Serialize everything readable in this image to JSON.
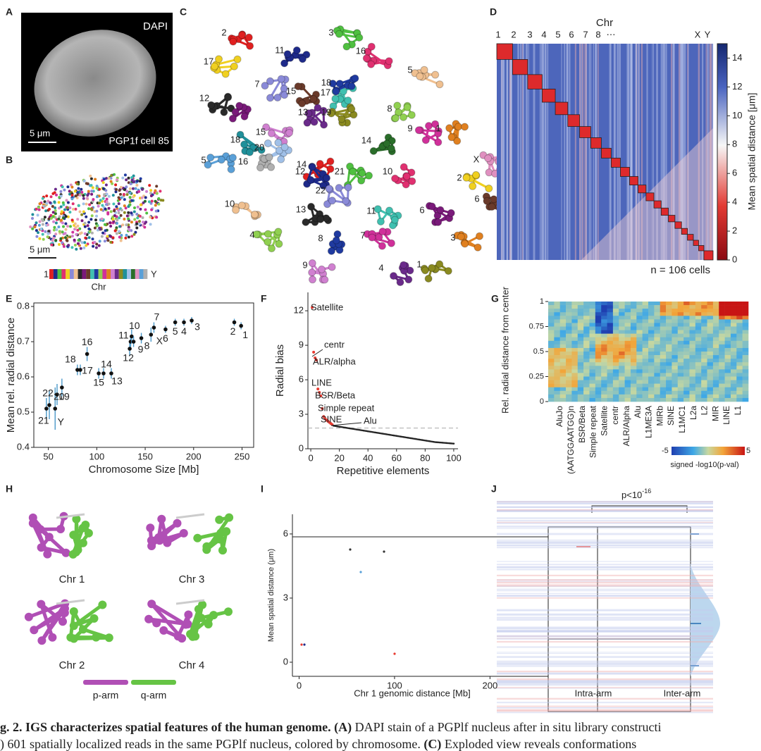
{
  "panel_labels": [
    "A",
    "B",
    "C",
    "D",
    "E",
    "F",
    "G",
    "H",
    "I",
    "J"
  ],
  "A": {
    "stain": "DAPI",
    "scale": "5 μm",
    "cell": "PGP1f cell 85"
  },
  "B": {
    "scale": "5 μm",
    "first": "1",
    "last": "Y",
    "axis": "Chr"
  },
  "C": {
    "chromosomes": [
      "2",
      "11",
      "3",
      "16",
      "17",
      "7",
      "5",
      "12",
      "Y",
      "15",
      "17",
      "18",
      "8",
      "9",
      "1",
      "15",
      "13",
      "19",
      "18",
      "20",
      "14",
      "X",
      "5",
      "16",
      "14",
      "12",
      "21",
      "10",
      "2",
      "22",
      "10",
      "13",
      "6",
      "6",
      "11",
      "8",
      "4",
      "7",
      "3",
      "9",
      "4",
      "1"
    ]
  },
  "D": {
    "title": "Chr",
    "chromosomes": [
      "1",
      "2",
      "3",
      "4",
      "5",
      "6",
      "7",
      "8",
      "⋯",
      "X",
      "Y"
    ],
    "colorbar": {
      "label": "Mean spatial distance [μm]",
      "lim": [
        0,
        15
      ],
      "ticks": [
        0,
        2,
        4,
        6,
        8,
        10,
        12,
        14
      ]
    },
    "note": "n = 106 cells"
  },
  "chart_data": [
    {
      "type": "scatter",
      "xlabel": "Chromosome Size [Mb]",
      "ylabel": "Mean rel. radial distance",
      "x": [
        48,
        51,
        57,
        59,
        64,
        80,
        83,
        90,
        102,
        107,
        115,
        134,
        135,
        136,
        138,
        146,
        156,
        159,
        171,
        181,
        190,
        198,
        242,
        249
      ],
      "values": [
        0.51,
        0.52,
        0.51,
        0.55,
        0.57,
        0.62,
        0.62,
        0.665,
        0.61,
        0.61,
        0.61,
        0.68,
        0.7,
        0.715,
        0.7,
        0.71,
        0.72,
        0.74,
        0.735,
        0.755,
        0.755,
        0.76,
        0.755,
        0.745
      ],
      "errors": [
        0.03,
        0.04,
        0.06,
        0.03,
        0.025,
        0.015,
        0.015,
        0.02,
        0.015,
        0.015,
        0.015,
        0.02,
        0.015,
        0.02,
        0.015,
        0.015,
        0.02,
        0.015,
        0.01,
        0.01,
        0.01,
        0.01,
        0.01,
        0.01
      ],
      "point_labels": [
        "21",
        "22",
        "Y",
        "19",
        "20",
        "18",
        "17",
        "16",
        "15",
        "14",
        "13",
        "12",
        "11",
        "10",
        "9",
        "8",
        "X",
        "7",
        "6",
        "5",
        "4",
        "3",
        "2",
        "1"
      ],
      "color": "#111111",
      "error_color": "#4a98c9",
      "xlim": [
        35,
        262
      ],
      "ylim": [
        0.4,
        0.81
      ],
      "xticks": [
        50,
        100,
        150,
        200,
        250
      ],
      "yticks": [
        0.4,
        0.5,
        0.6,
        0.7,
        0.8
      ]
    },
    {
      "type": "scatter",
      "xlabel": "Repetitive elements",
      "ylabel": "Radial bias",
      "series": [
        {
          "color": "#e8392f",
          "x": [
            1,
            2,
            3,
            4,
            5,
            6,
            7,
            8,
            9,
            10,
            11,
            12,
            13,
            14,
            15
          ],
          "values": [
            12.3,
            8.4,
            7.9,
            7.7,
            5.2,
            4.9,
            4.6,
            3.5,
            2.8,
            2.6,
            2.5,
            2.4,
            2.3,
            2.2,
            2.1
          ]
        },
        {
          "color": "#222222",
          "x": [
            16,
            17,
            18,
            19,
            20,
            21,
            22,
            23,
            24,
            25,
            26,
            27,
            28,
            29,
            30,
            31,
            32,
            33,
            34,
            35,
            36,
            37,
            38,
            39,
            40,
            41,
            42,
            43,
            44,
            45,
            46,
            47,
            48,
            49,
            50,
            51,
            52,
            53,
            54,
            55,
            56,
            57,
            58,
            59,
            60,
            61,
            62,
            63,
            64,
            65,
            66,
            67,
            68,
            69,
            70,
            71,
            72,
            73,
            74,
            75,
            76,
            77,
            78,
            79,
            80,
            81,
            82,
            83,
            84,
            85,
            86,
            87,
            88,
            89,
            90,
            91,
            92,
            93,
            94,
            95,
            96,
            97,
            98,
            99,
            100
          ],
          "values": [
            2.0,
            1.98,
            1.96,
            1.94,
            1.92,
            1.9,
            1.88,
            1.86,
            1.84,
            1.82,
            1.8,
            1.78,
            1.76,
            1.74,
            1.72,
            1.7,
            1.68,
            1.66,
            1.64,
            1.62,
            1.6,
            1.58,
            1.56,
            1.54,
            1.52,
            1.5,
            1.48,
            1.46,
            1.44,
            1.42,
            1.4,
            1.38,
            1.36,
            1.34,
            1.32,
            1.3,
            1.28,
            1.26,
            1.24,
            1.22,
            1.2,
            1.18,
            1.16,
            1.14,
            1.12,
            1.1,
            1.08,
            1.06,
            1.04,
            1.02,
            1.0,
            0.98,
            0.96,
            0.94,
            0.92,
            0.9,
            0.88,
            0.86,
            0.84,
            0.82,
            0.8,
            0.78,
            0.76,
            0.74,
            0.72,
            0.7,
            0.68,
            0.66,
            0.64,
            0.62,
            0.6,
            0.58,
            0.57,
            0.56,
            0.55,
            0.54,
            0.53,
            0.52,
            0.51,
            0.5,
            0.49,
            0.48,
            0.47,
            0.46,
            0.45
          ]
        }
      ],
      "annotations": [
        "Satellite",
        "centr",
        "ALR/alpha",
        "LINE",
        "BSR/Beta",
        "Simple repeat",
        "SINE",
        "Alu"
      ],
      "reference_line": 1.8,
      "reference_color": "#aaaaaa",
      "xlim": [
        -2,
        103
      ],
      "ylim": [
        0,
        13.6
      ],
      "xticks": [
        0,
        20,
        40,
        60,
        80,
        100
      ],
      "yticks": [
        0,
        3,
        6,
        9,
        12
      ]
    }
  ],
  "G": {
    "ylabel": "Rel. radial distance from center",
    "ylim": [
      0,
      1
    ],
    "yticks": [
      0,
      0.25,
      0.5,
      0.75,
      1
    ],
    "categories": [
      "AluJo",
      "(AATGGAATGG)n",
      "BSR/Beta",
      "Simple repeat",
      "Satellite",
      "centr",
      "ALR/Alpha",
      "Alu",
      "L1ME3A",
      "MIRb",
      "SINE",
      "L1MC1",
      "L2a",
      "L2",
      "MIR",
      "LINE",
      "L1"
    ],
    "colorbar": {
      "label": "signed -log10(p-val)",
      "lim": [
        -5,
        5
      ],
      "ticks": [
        -5,
        5
      ]
    }
  },
  "H": {
    "chromosomes": [
      "Chr 1",
      "Chr 3",
      "Chr 2",
      "Chr 4"
    ],
    "legend": [
      {
        "name": "p-arm",
        "color": "#b04fb5"
      },
      {
        "name": "q-arm",
        "color": "#66c445"
      }
    ]
  },
  "I": {
    "ylabel": "Mean spatial distance (μm)",
    "xlabel": "Chr 1 genomic distance [Mb]",
    "xlim": [
      -7,
      261
    ],
    "ylim": [
      -0.66,
      6.92
    ],
    "xticks": [
      0,
      100,
      200
    ],
    "yticks": [
      0,
      3,
      6
    ]
  },
  "J": {
    "significance": "p<10",
    "exponent": "-16",
    "categories": [
      "Intra-arm",
      "Inter-arm"
    ]
  },
  "caption": {
    "line1": [
      {
        "bold": true,
        "text": "g. 2. IGS characterizes spatial features of the human genome. "
      },
      {
        "bold": true,
        "text": "(A)"
      },
      {
        "bold": false,
        "text": " DAPI stain of a PGPlf nucleus after in situ library constructi"
      }
    ],
    "line2": [
      {
        "bold": false,
        "text": ") 601 spatially localized reads in the same PGPlf nucleus, colored by chromosome. "
      },
      {
        "bold": true,
        "text": "(C)"
      },
      {
        "bold": false,
        "text": " Exploded view reveals conformations"
      }
    ]
  }
}
